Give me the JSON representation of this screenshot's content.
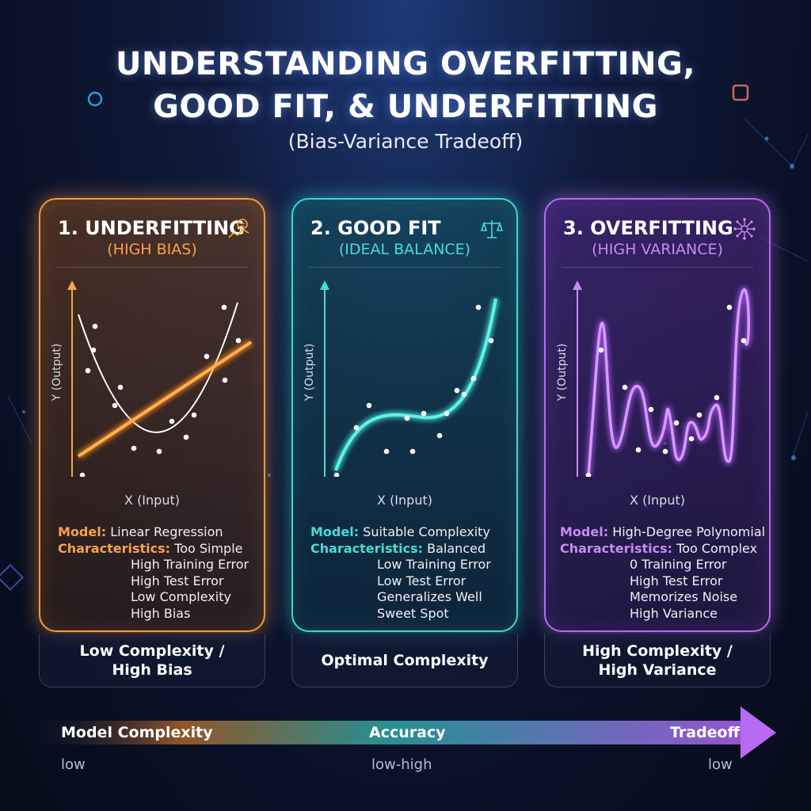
{
  "header": {
    "title_line1": "UNDERSTANDING OVERFITTING,",
    "title_line2": "GOOD FIT, & UNDERFITTING",
    "subtitle": "(Bias-Variance Tradeoff)"
  },
  "colors": {
    "underfitting": "#f59a3a",
    "good_fit": "#3fd6d0",
    "overfitting": "#b46cf0"
  },
  "cards": [
    {
      "title": "1. UNDERFITTING",
      "subtitle": "(HIGH BIAS)",
      "icon": "trend-line-icon",
      "xlabel": "X (Input)",
      "ylabel": "Y (Output)",
      "model_label": "Model:",
      "model_value": "Linear Regression",
      "char_label": "Characteristics:",
      "characteristics": [
        "Too Simple",
        "High Training Error",
        "High Test Error",
        "Low Complexity",
        "High Bias"
      ],
      "footer_line1": "Low Complexity /",
      "footer_line2": "High Bias"
    },
    {
      "title": "2. GOOD FIT",
      "subtitle": "(IDEAL BALANCE)",
      "icon": "balance-scale-icon",
      "xlabel": "X (Input)",
      "ylabel": "Y (Output)",
      "model_label": "Model:",
      "model_value": "Suitable Complexity",
      "char_label": "Characteristics:",
      "characteristics": [
        "Balanced",
        "Low Training Error",
        "Low Test Error",
        "Generalizes Well",
        "Sweet Spot"
      ],
      "footer_line1": "Optimal Complexity",
      "footer_line2": ""
    },
    {
      "title": "3. OVERFITTING",
      "subtitle": "(HIGH VARIANCE)",
      "icon": "network-nodes-icon",
      "xlabel": "X (Input)",
      "ylabel": "Y (Output)",
      "model_label": "Model:",
      "model_value": "High-Degree Polynomial",
      "char_label": "Characteristics:",
      "characteristics": [
        "Too Complex",
        "0 Training Error",
        "High Test Error",
        "Memorizes Noise",
        "High Variance"
      ],
      "footer_line1": "High Complexity /",
      "footer_line2": "High Variance"
    }
  ],
  "axis": {
    "left_label": "Model Complexity",
    "center_label": "Accuracy",
    "right_label": "Tradeoff",
    "left_value": "low",
    "center_value": "low-high",
    "right_value": "low"
  }
}
